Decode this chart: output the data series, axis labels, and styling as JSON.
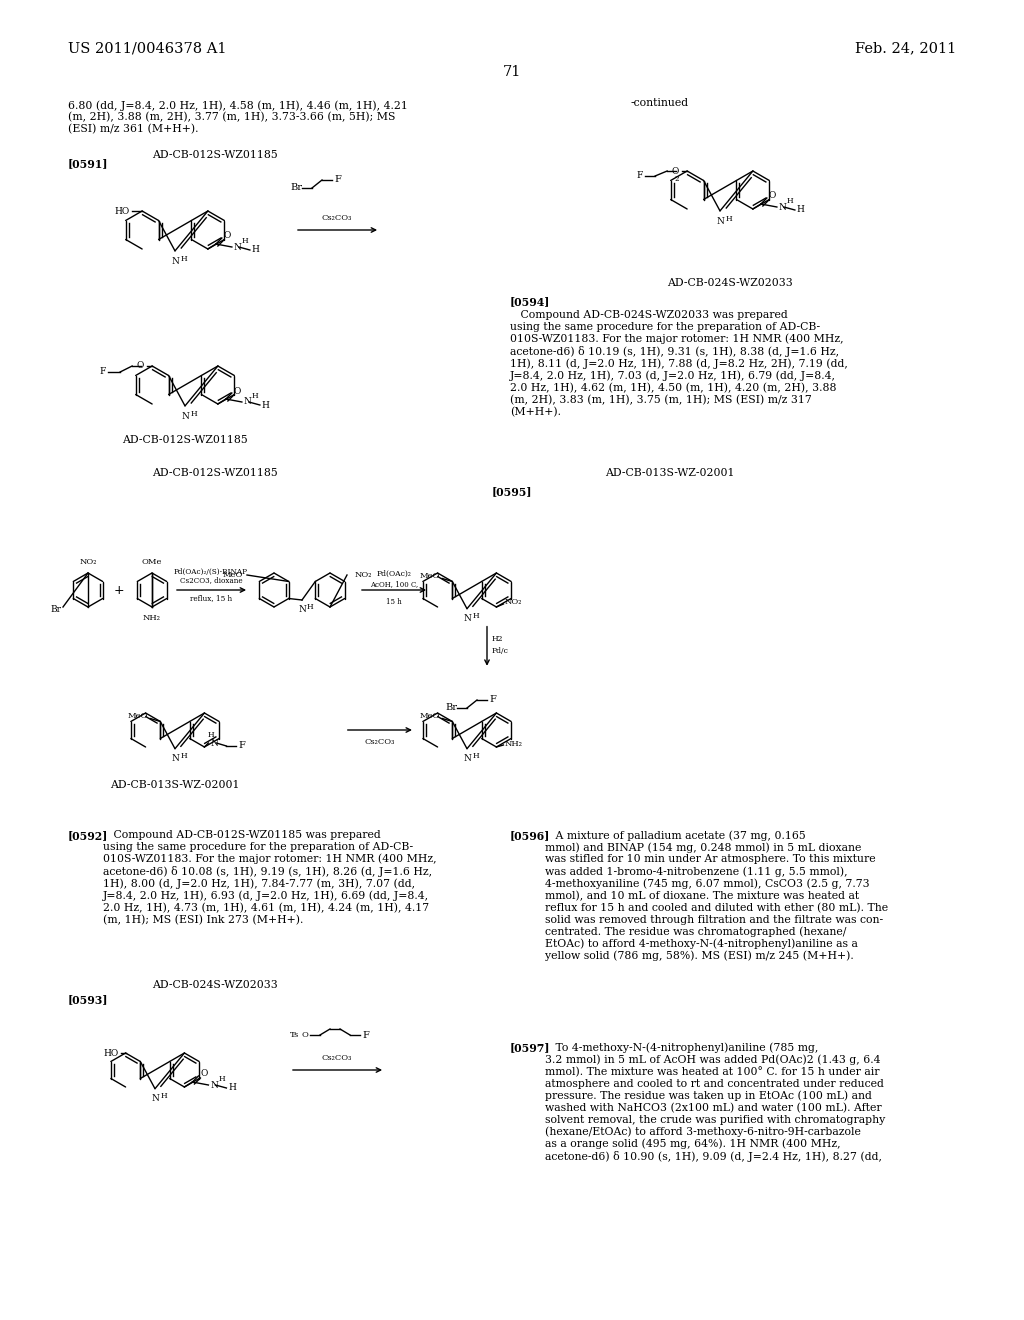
{
  "page_number": "71",
  "header_left": "US 2011/0046378 A1",
  "header_right": "Feb. 24, 2011",
  "background_color": "#ffffff",
  "text_color": "#000000",
  "fs_header": 10.5,
  "fs_body": 7.8,
  "fs_small": 6.8,
  "top_text_left": "6.80 (dd, J=8.4, 2.0 Hz, 1H), 4.58 (m, 1H), 4.46 (m, 1H), 4.21\n(m, 2H), 3.88 (m, 2H), 3.77 (m, 1H), 3.73-3.66 (m, 5H); MS\n(ESI) m/z 361 (M+H+).",
  "label_0591_name": "AD-CB-012S-WZ01185",
  "tag_0591": "[0591]",
  "label_continued": "-continued",
  "label_AD_CB_024S": "AD-CB-024S-WZ02033",
  "tag_0594": "[0594]",
  "text_0594": "   Compound AD-CB-024S-WZ02033 was prepared\nusing the same procedure for the preparation of AD-CB-\n010S-WZ01183. For the major rotomer: 1H NMR (400 MHz,\nacetone-d6) δ 10.19 (s, 1H), 9.31 (s, 1H), 8.38 (d, J=1.6 Hz,\n1H), 8.11 (d, J=2.0 Hz, 1H), 7.88 (d, J=8.2 Hz, 2H), 7.19 (dd,\nJ=8.4, 2.0 Hz, 1H), 7.03 (d, J=2.0 Hz, 1H), 6.79 (dd, J=8.4,\n2.0 Hz, 1H), 4.62 (m, 1H), 4.50 (m, 1H), 4.20 (m, 2H), 3.88\n(m, 2H), 3.83 (m, 1H), 3.75 (m, 1H); MS (ESI) m/z 317\n(M+H+).",
  "label_AD_CB_013S": "AD-CB-013S-WZ-02001",
  "tag_0595": "[0595]",
  "tag_0592": "[0592]",
  "text_0592": "   Compound AD-CB-012S-WZ01185 was prepared\nusing the same procedure for the preparation of AD-CB-\n010S-WZ01183. For the major rotomer: 1H NMR (400 MHz,\nacetone-d6) δ 10.08 (s, 1H), 9.19 (s, 1H), 8.26 (d, J=1.6 Hz,\n1H), 8.00 (d, J=2.0 Hz, 1H), 7.84-7.77 (m, 3H), 7.07 (dd,\nJ=8.4, 2.0 Hz, 1H), 6.93 (d, J=2.0 Hz, 1H), 6.69 (dd, J=8.4,\n2.0 Hz, 1H), 4.73 (m, 1H), 4.61 (m, 1H), 4.24 (m, 1H), 4.17\n(m, 1H); MS (ESI) Ink 273 (M+H+).",
  "label_AD_CB_024S_2": "AD-CB-024S-WZ02033",
  "tag_0593_bracket": "[0593]",
  "tag_0596": "[0596]",
  "text_0596": "   A mixture of palladium acetate (37 mg, 0.165\nmmol) and BINAP (154 mg, 0.248 mmol) in 5 mL dioxane\nwas stifled for 10 min under Ar atmosphere. To this mixture\nwas added 1-bromo-4-nitrobenzene (1.11 g, 5.5 mmol),\n4-methoxyaniline (745 mg, 6.07 mmol), CsCO3 (2.5 g, 7.73\nmmol), and 10 mL of dioxane. The mixture was heated at\nreflux for 15 h and cooled and diluted with ether (80 mL). The\nsolid was removed through filtration and the filtrate was con-\ncentrated. The residue was chromatographed (hexane/\nEtOAc) to afford 4-methoxy-N-(4-nitrophenyl)aniline as a\nyellow solid (786 mg, 58%). MS (ESI) m/z 245 (M+H+).",
  "tag_0597": "[0597]",
  "text_0597": "   To 4-methoxy-N-(4-nitrophenyl)aniline (785 mg,\n3.2 mmol) in 5 mL of AcOH was added Pd(OAc)2 (1.43 g, 6.4\nmmol). The mixture was heated at 100° C. for 15 h under air\natmosphere and cooled to rt and concentrated under reduced\npressure. The residue was taken up in EtOAc (100 mL) and\nwashed with NaHCO3 (2x100 mL) and water (100 mL). After\nsolvent removal, the crude was purified with chromatography\n(hexane/EtOAc) to afford 3-methoxy-6-nitro-9H-carbazole\nas a orange solid (495 mg, 64%). 1H NMR (400 MHz,\nacetone-d6) δ 10.90 (s, 1H), 9.09 (d, J=2.4 Hz, 1H), 8.27 (dd,"
}
